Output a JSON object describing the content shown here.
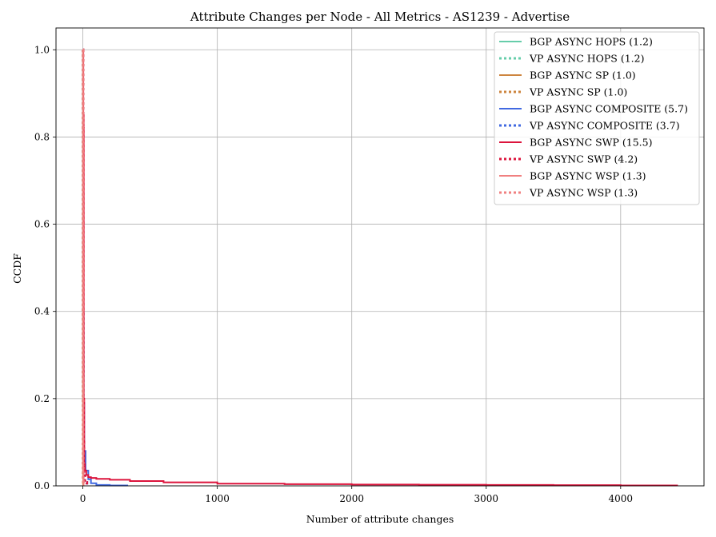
{
  "chart_data": {
    "type": "line",
    "title": "Attribute Changes per Node - All Metrics - AS1239 - Advertise",
    "xlabel": "Number of attribute changes",
    "ylabel": "CCDF",
    "xlim": [
      -200,
      4620
    ],
    "ylim": [
      0,
      1.05
    ],
    "xticks": [
      0,
      1000,
      2000,
      3000,
      4000
    ],
    "yticks": [
      0.0,
      0.2,
      0.4,
      0.6,
      0.8,
      1.0
    ],
    "xtick_labels": [
      "0",
      "1000",
      "2000",
      "3000",
      "4000"
    ],
    "ytick_labels": [
      "0.0",
      "0.2",
      "0.4",
      "0.6",
      "0.8",
      "1.0"
    ],
    "grid": true,
    "legend_position": "top-right",
    "series": [
      {
        "name": "BGP ASYNC HOPS (1.2)",
        "color": "#66cdaa",
        "style": "solid",
        "x": [
          0,
          1,
          2,
          3,
          4
        ],
        "y": [
          1.0,
          0.18,
          0.03,
          0.005,
          0.0
        ]
      },
      {
        "name": "VP ASYNC HOPS (1.2)",
        "color": "#66cdaa",
        "style": "dotted",
        "x": [
          0,
          1,
          2,
          3,
          4
        ],
        "y": [
          1.0,
          0.18,
          0.03,
          0.005,
          0.0
        ]
      },
      {
        "name": "BGP ASYNC SP (1.0)",
        "color": "#cd853f",
        "style": "solid",
        "x": [
          0,
          1,
          2
        ],
        "y": [
          1.0,
          0.02,
          0.0
        ]
      },
      {
        "name": "VP ASYNC SP (1.0)",
        "color": "#cd853f",
        "style": "dotted",
        "x": [
          0,
          1,
          2
        ],
        "y": [
          1.0,
          0.02,
          0.0
        ]
      },
      {
        "name": "BGP ASYNC COMPOSITE (5.7)",
        "color": "#4169e1",
        "style": "solid",
        "x": [
          0,
          2,
          5,
          10,
          20,
          40,
          60,
          100,
          200,
          330
        ],
        "y": [
          1.0,
          0.5,
          0.19,
          0.08,
          0.035,
          0.015,
          0.006,
          0.002,
          0.001,
          0.0
        ]
      },
      {
        "name": "VP ASYNC COMPOSITE (3.7)",
        "color": "#4169e1",
        "style": "dotted",
        "x": [
          0,
          2,
          4,
          8,
          15,
          30
        ],
        "y": [
          1.0,
          0.4,
          0.1,
          0.03,
          0.008,
          0.0
        ]
      },
      {
        "name": "BGP ASYNC SWP (15.5)",
        "color": "#dc143c",
        "style": "solid",
        "x": [
          0,
          3,
          6,
          10,
          15,
          25,
          40,
          60,
          100,
          200,
          350,
          600,
          1000,
          1500,
          2000,
          2500,
          3000,
          3500,
          4000,
          4420
        ],
        "y": [
          1.0,
          0.85,
          0.2,
          0.05,
          0.035,
          0.025,
          0.02,
          0.018,
          0.016,
          0.014,
          0.011,
          0.008,
          0.005,
          0.004,
          0.003,
          0.0025,
          0.002,
          0.0015,
          0.001,
          0.0
        ]
      },
      {
        "name": "VP ASYNC SWP (4.2)",
        "color": "#dc143c",
        "style": "dotted",
        "x": [
          0,
          2,
          4,
          8,
          15,
          30
        ],
        "y": [
          1.0,
          0.82,
          0.1,
          0.03,
          0.008,
          0.0
        ]
      },
      {
        "name": "BGP ASYNC WSP (1.3)",
        "color": "#f08080",
        "style": "solid",
        "x": [
          0,
          1,
          2,
          3,
          5
        ],
        "y": [
          1.0,
          0.25,
          0.04,
          0.01,
          0.0
        ]
      },
      {
        "name": "VP ASYNC WSP (1.3)",
        "color": "#f08080",
        "style": "dotted",
        "x": [
          0,
          1,
          2,
          3,
          5
        ],
        "y": [
          1.0,
          0.25,
          0.04,
          0.01,
          0.0
        ]
      }
    ]
  }
}
